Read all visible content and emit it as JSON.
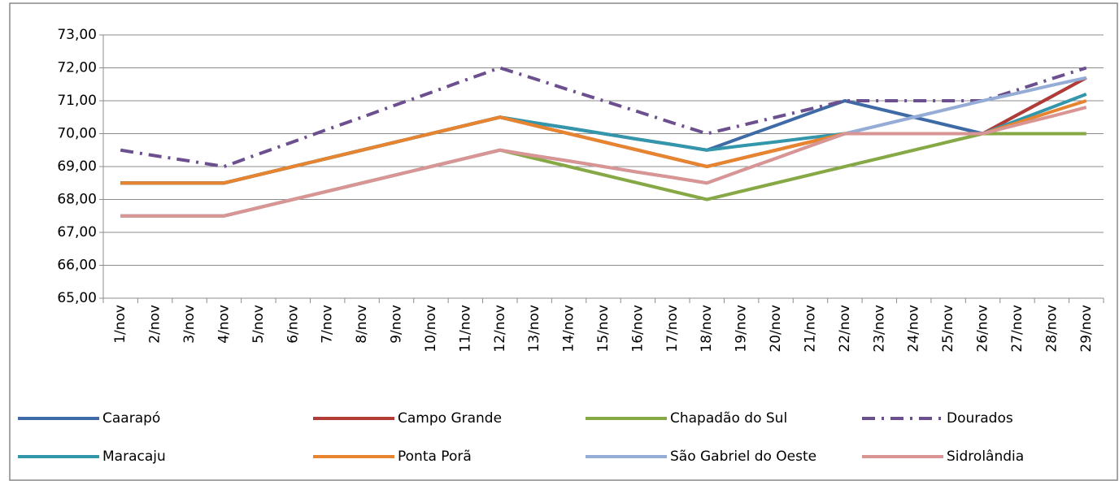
{
  "chart_data": {
    "type": "line",
    "categories": [
      "1/nov",
      "2/nov",
      "3/nov",
      "4/nov",
      "5/nov",
      "6/nov",
      "7/nov",
      "8/nov",
      "9/nov",
      "10/nov",
      "11/nov",
      "12/nov",
      "13/nov",
      "14/nov",
      "15/nov",
      "16/nov",
      "17/nov",
      "18/nov",
      "19/nov",
      "20/nov",
      "21/nov",
      "22/nov",
      "23/nov",
      "24/nov",
      "25/nov",
      "26/nov",
      "27/nov",
      "28/nov",
      "29/nov"
    ],
    "ylim": [
      65,
      73
    ],
    "yticks": [
      {
        "value": 65,
        "label": "65,00"
      },
      {
        "value": 66,
        "label": "66,00"
      },
      {
        "value": 67,
        "label": "67,00"
      },
      {
        "value": 68,
        "label": "68,00"
      },
      {
        "value": 69,
        "label": "69,00"
      },
      {
        "value": 70,
        "label": "70,00"
      },
      {
        "value": 71,
        "label": "71,00"
      },
      {
        "value": 72,
        "label": "72,00"
      },
      {
        "value": 73,
        "label": "73,00"
      }
    ],
    "grid": true,
    "legend": "bottom",
    "series": [
      {
        "name": "Caarapó",
        "color": "#3e6aa6",
        "dash": "solid",
        "values": [
          68.5,
          68.5,
          68.5,
          68.5,
          68.75,
          69,
          69.25,
          69.5,
          69.75,
          70,
          70.25,
          70.5,
          70.33,
          70.17,
          70,
          69.83,
          69.67,
          69.5,
          69.88,
          70.25,
          70.63,
          71,
          70.75,
          70.5,
          70.25,
          70,
          70.57,
          71.13,
          71.7
        ]
      },
      {
        "name": "Campo Grande",
        "color": "#b23b36",
        "dash": "solid",
        "values": [
          68.5,
          68.5,
          68.5,
          68.5,
          68.75,
          69,
          69.25,
          69.5,
          69.75,
          70,
          70.25,
          70.5,
          70.25,
          70,
          69.75,
          69.5,
          69.25,
          69,
          69.25,
          69.5,
          69.75,
          70,
          70,
          70,
          70,
          70,
          70.57,
          71.13,
          71.7
        ]
      },
      {
        "name": "Chapadão do Sul",
        "color": "#86a845",
        "dash": "solid",
        "values": [
          67.5,
          67.5,
          67.5,
          67.5,
          67.75,
          68,
          68.25,
          68.5,
          68.75,
          69,
          69.25,
          69.5,
          69.25,
          69,
          68.75,
          68.5,
          68.25,
          68,
          68.25,
          68.5,
          68.75,
          69,
          69.25,
          69.5,
          69.75,
          70,
          70,
          70,
          70
        ]
      },
      {
        "name": "Dourados",
        "color": "#6c4f8e",
        "dash": "dashdot",
        "values": [
          69.5,
          69.33,
          69.17,
          69,
          69.38,
          69.75,
          70.13,
          70.5,
          70.88,
          71.25,
          71.63,
          72,
          71.67,
          71.33,
          71,
          70.67,
          70.33,
          70,
          70.25,
          70.5,
          70.75,
          71,
          71,
          71,
          71,
          71,
          71.33,
          71.67,
          72
        ]
      },
      {
        "name": "Maracaju",
        "color": "#3396aa",
        "dash": "solid",
        "values": [
          68.5,
          68.5,
          68.5,
          68.5,
          68.75,
          69,
          69.25,
          69.5,
          69.75,
          70,
          70.25,
          70.5,
          70.33,
          70.17,
          70,
          69.83,
          69.67,
          69.5,
          69.63,
          69.75,
          69.88,
          70,
          70,
          70,
          70,
          70,
          70.4,
          70.8,
          71.2
        ]
      },
      {
        "name": "Ponta Porã",
        "color": "#e6842f",
        "dash": "solid",
        "values": [
          68.5,
          68.5,
          68.5,
          68.5,
          68.75,
          69,
          69.25,
          69.5,
          69.75,
          70,
          70.25,
          70.5,
          70.25,
          70,
          69.75,
          69.5,
          69.25,
          69,
          69.25,
          69.5,
          69.75,
          70,
          70,
          70,
          70,
          70,
          70.33,
          70.67,
          71
        ]
      },
      {
        "name": "São Gabriel do Oeste",
        "color": "#94acd6",
        "dash": "solid",
        "values": [
          67.5,
          67.5,
          67.5,
          67.5,
          67.75,
          68,
          68.25,
          68.5,
          68.75,
          69,
          69.25,
          69.5,
          69.33,
          69.17,
          69,
          68.83,
          68.67,
          68.5,
          68.88,
          69.25,
          69.63,
          70,
          70.25,
          70.5,
          70.75,
          71,
          71.23,
          71.47,
          71.7
        ]
      },
      {
        "name": "Sidrolândia",
        "color": "#d89593",
        "dash": "solid",
        "values": [
          67.5,
          67.5,
          67.5,
          67.5,
          67.75,
          68,
          68.25,
          68.5,
          68.75,
          69,
          69.25,
          69.5,
          69.33,
          69.17,
          69,
          68.83,
          68.67,
          68.5,
          68.88,
          69.25,
          69.63,
          70,
          70,
          70,
          70,
          70,
          70.27,
          70.53,
          70.8
        ]
      }
    ]
  }
}
